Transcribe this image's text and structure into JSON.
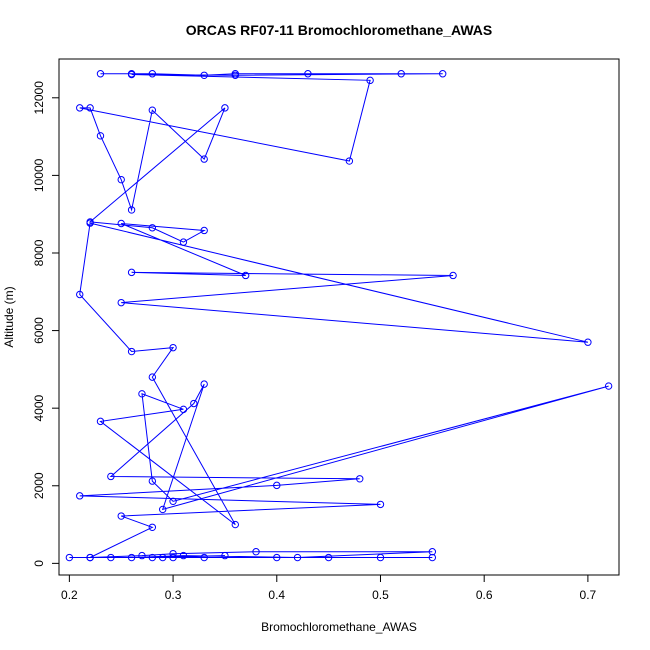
{
  "chart_data": {
    "type": "line",
    "title": "ORCAS RF07-11 Bromochloromethane_AWAS",
    "xlabel": "Bromochloromethane_AWAS",
    "ylabel": "Altitude (m)",
    "xlim": [
      0.19,
      0.73
    ],
    "ylim": [
      -300,
      13000
    ],
    "xticks": [
      0.2,
      0.3,
      0.4,
      0.5,
      0.6,
      0.7
    ],
    "xtick_labels": [
      "0.2",
      "0.3",
      "0.4",
      "0.5",
      "0.6",
      "0.7"
    ],
    "yticks": [
      0,
      2000,
      4000,
      6000,
      8000,
      10000,
      12000
    ],
    "ytick_labels": [
      "0",
      "2000",
      "4000",
      "6000",
      "8000",
      "10000",
      "12000"
    ],
    "grid": false,
    "markers": "open-circle",
    "line_color": "#0000ff",
    "series": [
      {
        "x": [
          0.23,
          0.26,
          0.28,
          0.33,
          0.36,
          0.43,
          0.52,
          0.56,
          0.36,
          0.26,
          0.49,
          0.47,
          0.21,
          0.22,
          0.23,
          0.25,
          0.26,
          0.28,
          0.33,
          0.35,
          0.22,
          0.28,
          0.31,
          0.33,
          0.25,
          0.37,
          0.26,
          0.57,
          0.25,
          0.7,
          0.22,
          0.21,
          0.26,
          0.3,
          0.28,
          0.36,
          0.23,
          0.31,
          0.27,
          0.28,
          0.3,
          0.72,
          0.29,
          0.33,
          0.32,
          0.24,
          0.48,
          0.4,
          0.21,
          0.5,
          0.25,
          0.28,
          0.22,
          0.27,
          0.3,
          0.38,
          0.55,
          0.42,
          0.31,
          0.26,
          0.35,
          0.29,
          0.2,
          0.22,
          0.24,
          0.28,
          0.3,
          0.33,
          0.4,
          0.45,
          0.5,
          0.55
        ],
        "y": [
          12620,
          12620,
          12620,
          12580,
          12620,
          12620,
          12620,
          12620,
          12580,
          12600,
          12450,
          10370,
          11740,
          11740,
          11020,
          9890,
          9110,
          11680,
          10420,
          11740,
          8800,
          8650,
          8280,
          8580,
          8760,
          7420,
          7500,
          7420,
          6720,
          5700,
          8770,
          6930,
          5460,
          5560,
          4800,
          1000,
          3660,
          3970,
          4370,
          2120,
          1600,
          4570,
          1390,
          4620,
          4120,
          2240,
          2180,
          2010,
          1740,
          1520,
          1220,
          930,
          150,
          200,
          250,
          300,
          300,
          150,
          200,
          150,
          200,
          150,
          150,
          150,
          150,
          150,
          150,
          150,
          150,
          150,
          150,
          150
        ]
      }
    ]
  }
}
